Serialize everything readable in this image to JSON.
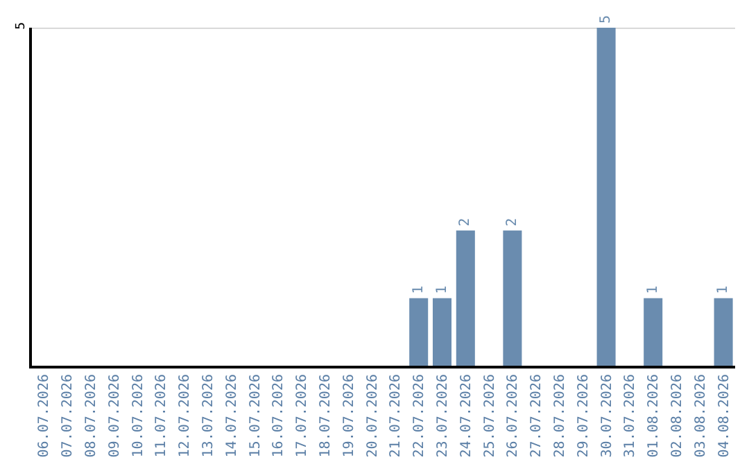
{
  "chart_data": {
    "type": "bar",
    "categories": [
      "06.07.2026",
      "07.07.2026",
      "08.07.2026",
      "09.07.2026",
      "10.07.2026",
      "11.07.2026",
      "12.07.2026",
      "13.07.2026",
      "14.07.2026",
      "15.07.2026",
      "16.07.2026",
      "17.07.2026",
      "18.07.2026",
      "19.07.2026",
      "20.07.2026",
      "21.07.2026",
      "22.07.2026",
      "23.07.2026",
      "24.07.2026",
      "25.07.2026",
      "26.07.2026",
      "27.07.2026",
      "28.07.2026",
      "29.07.2026",
      "30.07.2026",
      "31.07.2026",
      "01.08.2026",
      "02.08.2026",
      "03.08.2026",
      "04.08.2026"
    ],
    "values": [
      null,
      null,
      null,
      null,
      null,
      null,
      null,
      null,
      null,
      null,
      null,
      null,
      null,
      null,
      null,
      null,
      1,
      1,
      2,
      null,
      2,
      null,
      null,
      null,
      5,
      null,
      1,
      null,
      null,
      1
    ],
    "legend": false,
    "value_labels": [
      null,
      null,
      null,
      null,
      null,
      null,
      null,
      null,
      null,
      null,
      null,
      null,
      null,
      null,
      null,
      null,
      "1",
      "1",
      "2",
      null,
      "2",
      null,
      null,
      null,
      "5",
      null,
      "1",
      null,
      null,
      "1"
    ],
    "color": "#6a8caf",
    "ylim": [
      0,
      5
    ],
    "yticks": [
      5
    ],
    "ref_lines": [
      {
        "axis": "y",
        "value": 5,
        "color": "#cccccc"
      }
    ]
  }
}
